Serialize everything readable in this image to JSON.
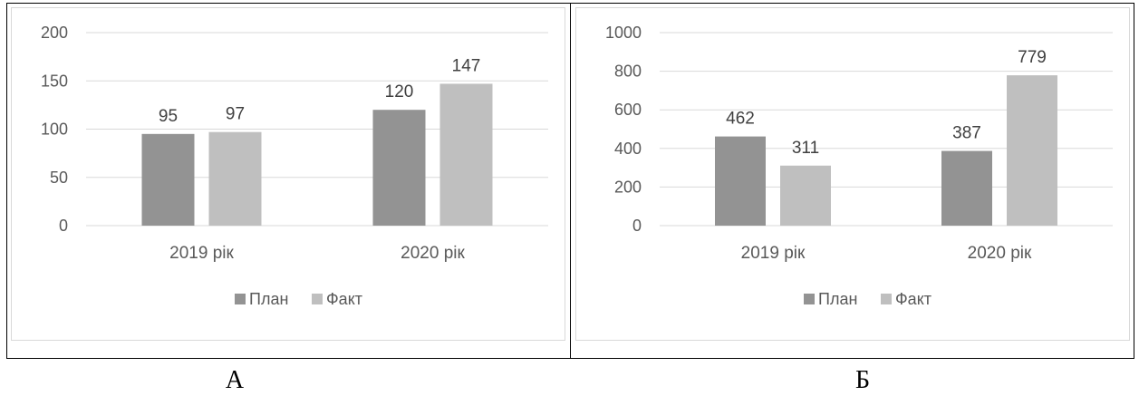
{
  "captions": {
    "a": "А",
    "b": "Б"
  },
  "chart_data": [
    {
      "type": "bar",
      "categories": [
        "2019 рік",
        "2020 рік"
      ],
      "series": [
        {
          "name": "План",
          "values": [
            95,
            120
          ],
          "color": "#939393"
        },
        {
          "name": "Факт",
          "values": [
            97,
            147
          ],
          "color": "#bfbfbf"
        }
      ],
      "yticks": [
        0,
        50,
        100,
        150,
        200
      ],
      "ylim": [
        0,
        200
      ],
      "grid": true,
      "legend": "bottom",
      "data_labels": true
    },
    {
      "type": "bar",
      "categories": [
        "2019 рік",
        "2020 рік"
      ],
      "series": [
        {
          "name": "План",
          "values": [
            462,
            387
          ],
          "color": "#939393"
        },
        {
          "name": "Факт",
          "values": [
            311,
            779
          ],
          "color": "#bfbfbf"
        }
      ],
      "yticks": [
        0,
        200,
        400,
        600,
        800,
        1000
      ],
      "ylim": [
        0,
        1000
      ],
      "grid": true,
      "legend": "bottom",
      "data_labels": true
    }
  ]
}
